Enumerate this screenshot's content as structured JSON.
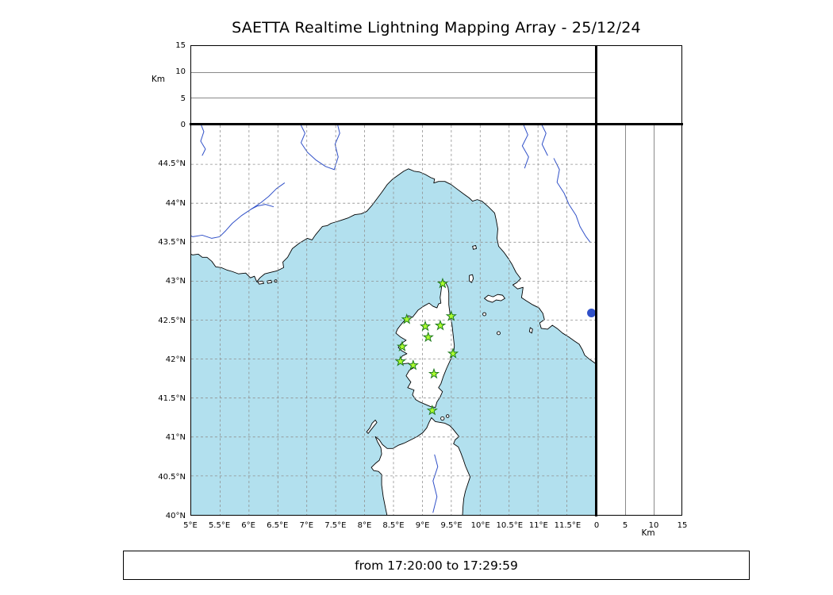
{
  "title": "SAETTA Realtime Lightning Mapping Array - 25/12/24",
  "footer": {
    "text": "from 17:20:00 to 17:29:59"
  },
  "colors": {
    "sea": "#b2e0ee",
    "land": "#ffffff",
    "coast": "#000000",
    "river": "#3050c8",
    "grid": "#8f8f8f",
    "station_fill": "#adff2f",
    "station_stroke": "#1e7a1e"
  },
  "map": {
    "extent": {
      "lon_min": 5,
      "lon_max": 12,
      "lat_min": 40,
      "lat_max": 45
    },
    "lon_ticks": [
      {
        "v": 5,
        "label": "5°E"
      },
      {
        "v": 5.5,
        "label": "5.5°E"
      },
      {
        "v": 6,
        "label": "6°E"
      },
      {
        "v": 6.5,
        "label": "6.5°E"
      },
      {
        "v": 7,
        "label": "7°E"
      },
      {
        "v": 7.5,
        "label": "7.5°E"
      },
      {
        "v": 8,
        "label": "8°E"
      },
      {
        "v": 8.5,
        "label": "8.5°E"
      },
      {
        "v": 9,
        "label": "9°E"
      },
      {
        "v": 9.5,
        "label": "9.5°E"
      },
      {
        "v": 10,
        "label": "10°E"
      },
      {
        "v": 10.5,
        "label": "10.5°E"
      },
      {
        "v": 11,
        "label": "11°E"
      },
      {
        "v": 11.5,
        "label": "11.5°E"
      }
    ],
    "lat_ticks": [
      {
        "v": 40,
        "label": "40°N"
      },
      {
        "v": 40.5,
        "label": "40.5°N"
      },
      {
        "v": 41,
        "label": "41°N"
      },
      {
        "v": 41.5,
        "label": "41.5°N"
      },
      {
        "v": 42,
        "label": "42°N"
      },
      {
        "v": 42.5,
        "label": "42.5°N"
      },
      {
        "v": 43,
        "label": "43°N"
      },
      {
        "v": 43.5,
        "label": "43.5°N"
      },
      {
        "v": 44,
        "label": "44°N"
      },
      {
        "v": 44.5,
        "label": "44.5°N"
      }
    ]
  },
  "altitude_axis": {
    "label": "Km",
    "min": 0,
    "max": 15,
    "ticks": [
      {
        "v": 0,
        "label": "0"
      },
      {
        "v": 5,
        "label": "5"
      },
      {
        "v": 10,
        "label": "10"
      },
      {
        "v": 15,
        "label": "15"
      }
    ],
    "gridlines": [
      5,
      10
    ]
  },
  "stations": {
    "marker": "star",
    "points": [
      {
        "lon": 9.35,
        "lat": 42.97
      },
      {
        "lon": 8.73,
        "lat": 42.51
      },
      {
        "lon": 9.05,
        "lat": 42.42
      },
      {
        "lon": 9.31,
        "lat": 42.43
      },
      {
        "lon": 9.5,
        "lat": 42.55
      },
      {
        "lon": 9.1,
        "lat": 42.28
      },
      {
        "lon": 8.65,
        "lat": 42.16
      },
      {
        "lon": 9.53,
        "lat": 42.07
      },
      {
        "lon": 8.62,
        "lat": 41.97
      },
      {
        "lon": 8.84,
        "lat": 41.92
      },
      {
        "lon": 9.2,
        "lat": 41.81
      },
      {
        "lon": 9.17,
        "lat": 41.34
      }
    ]
  }
}
